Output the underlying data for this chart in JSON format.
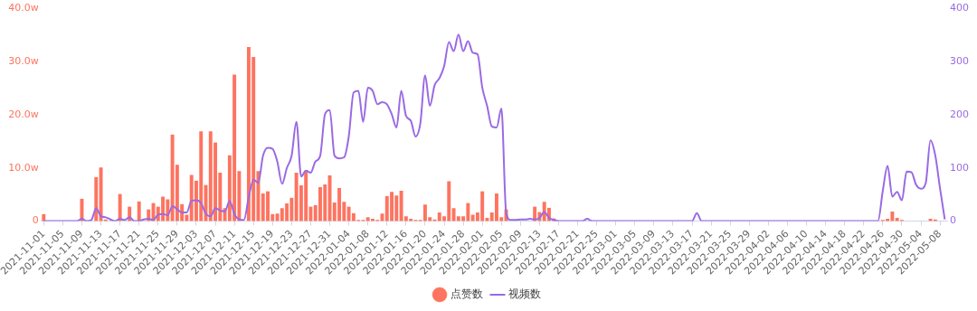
{
  "chart_data": {
    "type": "bar",
    "categories": [
      "2021-11-01",
      null,
      null,
      null,
      "2021-11-05",
      null,
      null,
      null,
      "2021-11-09",
      null,
      null,
      null,
      "2021-11-13",
      null,
      null,
      null,
      "2021-11-17",
      null,
      null,
      null,
      "2021-11-21",
      null,
      null,
      null,
      "2021-11-25",
      null,
      null,
      null,
      "2021-11-29",
      null,
      null,
      null,
      "2021-12-03",
      null,
      null,
      null,
      "2021-12-07",
      null,
      null,
      null,
      "2021-12-11",
      null,
      null,
      null,
      "2021-12-15",
      null,
      null,
      null,
      "2021-12-19",
      null,
      null,
      null,
      "2021-12-23",
      null,
      null,
      null,
      "2021-12-27",
      null,
      null,
      null,
      "2021-12-31",
      null,
      null,
      null,
      "2022-01-04",
      null,
      null,
      null,
      "2022-01-08",
      null,
      null,
      null,
      "2022-01-12",
      null,
      null,
      null,
      "2022-01-16",
      null,
      null,
      null,
      "2022-01-20",
      null,
      null,
      null,
      "2022-01-24",
      null,
      null,
      null,
      "2022-01-28",
      null,
      null,
      null,
      "2022-02-01",
      null,
      null,
      null,
      "2022-02-05",
      null,
      null,
      null,
      "2022-02-09",
      null,
      null,
      null,
      "2022-02-13",
      null,
      null,
      null,
      "2022-02-17",
      null,
      null,
      null,
      "2022-02-21",
      null,
      null,
      null,
      "2022-02-25",
      null,
      null,
      null,
      "2022-03-01",
      null,
      null,
      null,
      "2022-03-05",
      null,
      null,
      null,
      "2022-03-09",
      null,
      null,
      null,
      "2022-03-13",
      null,
      null,
      null,
      "2022-03-17",
      null,
      null,
      null,
      "2022-03-21",
      null,
      null,
      null,
      "2022-03-25",
      null,
      null,
      null,
      "2022-03-29",
      null,
      null,
      null,
      "2022-04-02",
      null,
      null,
      null,
      "2022-04-06",
      null,
      null,
      null,
      "2022-04-10",
      null,
      null,
      null,
      "2022-04-14",
      null,
      null,
      null,
      "2022-04-18",
      null,
      null,
      null,
      "2022-04-22",
      null,
      null,
      null,
      "2022-04-26",
      null,
      null,
      null,
      "2022-04-30",
      null,
      null,
      null,
      "2022-05-04",
      null,
      null,
      null,
      "2022-05-08",
      null
    ],
    "series": [
      {
        "name": "点赞数",
        "color": "#fd7460",
        "values": [
          1.3,
          0,
          0,
          0,
          0,
          0,
          0,
          0,
          4.2,
          0,
          0,
          8.3,
          10.1,
          0.3,
          0,
          0,
          5.1,
          0,
          2.7,
          0,
          3.7,
          0,
          2.2,
          3.4,
          2.7,
          4.6,
          4.1,
          16.3,
          10.6,
          3.2,
          1.2,
          8.7,
          7.6,
          16.9,
          6.8,
          16.9,
          14.8,
          9.1,
          2.4,
          12.4,
          27.6,
          9.4,
          0,
          32.8,
          30.9,
          9.4,
          5.2,
          5.6,
          1.3,
          1.4,
          2.4,
          3.3,
          4.4,
          9.1,
          6.7,
          9.5,
          2.7,
          3.0,
          6.4,
          6.9,
          8.6,
          3.5,
          6.2,
          3.6,
          2.7,
          1.5,
          0.2,
          0.2,
          0.7,
          0.4,
          0.2,
          1.4,
          4.7,
          5.5,
          4.8,
          5.7,
          0.9,
          0.4,
          0.2,
          0.2,
          3.1,
          0.7,
          0.3,
          1.6,
          0.9,
          7.5,
          2.4,
          0.9,
          0.9,
          3.4,
          1.2,
          1.6,
          5.6,
          0.6,
          1.6,
          5.2,
          0.7,
          2.2,
          0,
          0,
          0,
          0,
          0,
          2.7,
          1.7,
          3.6,
          2.5,
          0.5,
          0,
          0,
          0,
          0,
          0,
          0,
          0,
          0,
          0,
          0,
          0,
          0,
          0,
          0,
          null,
          0,
          0,
          0,
          0,
          0,
          0,
          0,
          0,
          0,
          0,
          0,
          0,
          0,
          0,
          0,
          0,
          0,
          0,
          0,
          0,
          0,
          0,
          0,
          0,
          0,
          0,
          0,
          0,
          0,
          0,
          0,
          0,
          0,
          0,
          0,
          0,
          0,
          0,
          0,
          0,
          0,
          0,
          0,
          0,
          0,
          0,
          0,
          0,
          0,
          0,
          0,
          0,
          0,
          0.2,
          0.4,
          1.8,
          0.6,
          0.2,
          0,
          0,
          0,
          0,
          0,
          0.4,
          0.3,
          0,
          0
        ]
      },
      {
        "name": "视频数",
        "type": "line",
        "axis": "y2",
        "color": "#9a6ae3",
        "values": [
          0,
          0,
          0,
          0,
          0,
          0,
          0,
          0,
          4,
          0,
          2,
          24,
          9,
          7,
          3,
          0,
          4,
          2,
          7,
          0,
          0,
          3,
          4,
          2,
          12,
          13,
          11,
          28,
          22,
          16,
          16,
          38,
          39,
          34,
          14,
          9,
          24,
          20,
          18,
          38,
          13,
          3,
          2,
          45,
          78,
          72,
          123,
          138,
          136,
          112,
          70,
          100,
          123,
          187,
          84,
          95,
          91,
          112,
          123,
          201,
          209,
          123,
          118,
          120,
          160,
          242,
          245,
          187,
          251,
          245,
          220,
          224,
          220,
          201,
          176,
          245,
          198,
          189,
          159,
          184,
          274,
          217,
          256,
          269,
          292,
          337,
          320,
          351,
          320,
          339,
          317,
          314,
          251,
          217,
          178,
          176,
          212,
          15,
          2,
          2,
          3,
          3,
          4,
          3,
          6,
          17,
          6,
          2,
          0,
          0,
          0,
          0,
          0,
          0,
          4,
          0,
          0,
          0,
          0,
          0,
          0,
          0,
          0,
          0,
          0,
          0,
          0,
          0,
          0,
          0,
          0,
          0,
          0,
          0,
          0,
          0,
          0,
          15,
          0,
          0,
          0,
          0,
          0,
          0,
          0,
          0,
          0,
          0,
          0,
          0,
          0,
          0,
          0,
          0,
          0,
          0,
          0,
          0,
          0,
          0,
          0,
          0,
          0,
          0,
          0,
          0,
          0,
          0,
          0,
          0,
          0,
          0,
          0,
          0,
          0,
          0,
          57,
          104,
          46,
          55,
          39,
          93,
          92,
          68,
          61,
          71,
          152,
          124,
          62,
          3
        ]
      }
    ],
    "ylim": [
      0,
      40
    ],
    "yticks": [
      0,
      {
        "value": 10,
        "label": "10.0w"
      },
      {
        "value": 20,
        "label": "20.0w"
      },
      {
        "value": 30,
        "label": "30.0w"
      },
      {
        "value": 40,
        "label": "40.0w"
      }
    ],
    "y2lim": [
      0,
      400
    ],
    "y2ticks": [
      0,
      100,
      200,
      300,
      400
    ],
    "grid": false,
    "legend": "bottom",
    "marker": "none",
    "line_style": "solid"
  }
}
